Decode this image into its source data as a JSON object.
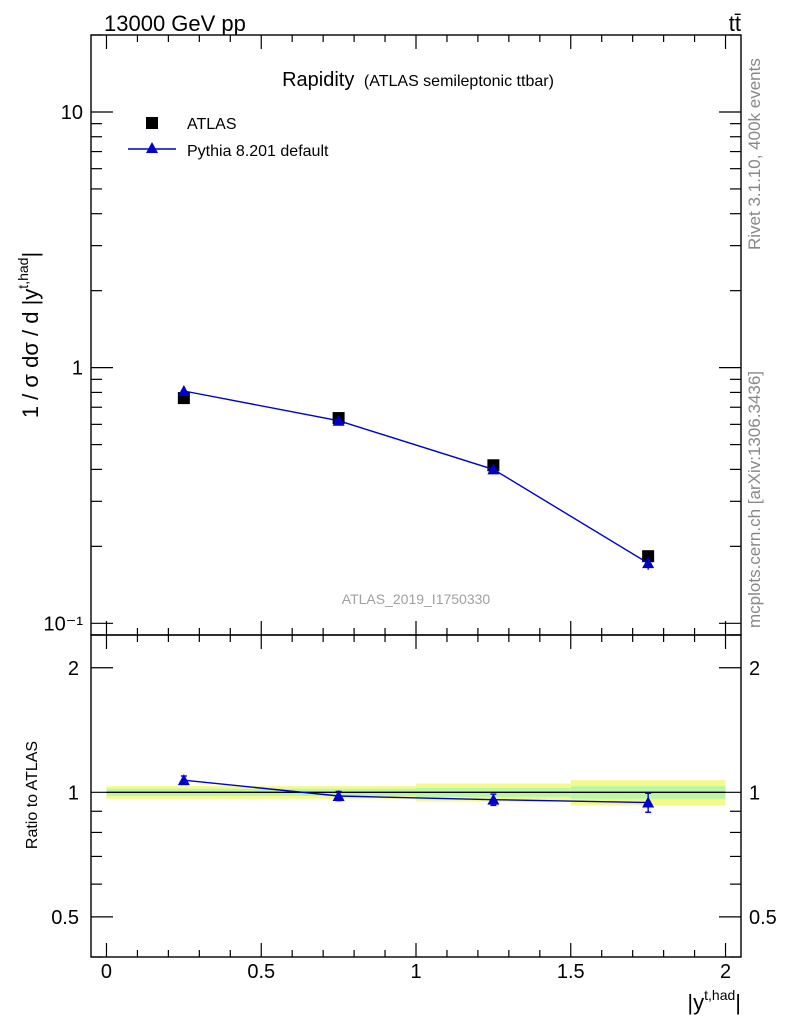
{
  "header": {
    "left": "13000 GeV pp",
    "right": "tt̄"
  },
  "side_text": {
    "rivet": "Rivet 3.1.10,  400k events",
    "source": "mcplots.cern.ch [arXiv:1306.3436]"
  },
  "chart_data": [
    {
      "type": "scatter",
      "title": "Rapidity",
      "subtitle": "(ATLAS semileptonic ttbar)",
      "watermark": "ATLAS_2019_I1750330",
      "ylabel": "1 / σ dσ / d |y^{t,had}|",
      "yscale": "log",
      "ylim": [
        0.09,
        20
      ],
      "xlim": [
        -0.05,
        2.05
      ],
      "y_ticks": [
        {
          "v": 0.1,
          "label": "10⁻¹"
        },
        {
          "v": 1,
          "label": "1"
        },
        {
          "v": 10,
          "label": "10"
        }
      ],
      "legend": {
        "position": "top-left"
      },
      "series": [
        {
          "name": "ATLAS",
          "marker": "square",
          "color": "#000000",
          "x": [
            0.25,
            0.75,
            1.25,
            1.75
          ],
          "y": [
            0.76,
            0.635,
            0.415,
            0.183
          ]
        },
        {
          "name": "Pythia 8.201 default",
          "marker": "triangle",
          "color": "#0000cc",
          "x": [
            0.25,
            0.75,
            1.25,
            1.75
          ],
          "y": [
            0.81,
            0.62,
            0.4,
            0.172
          ],
          "yerr": [
            0.012,
            0.01,
            0.008,
            0.01
          ]
        }
      ]
    },
    {
      "type": "line",
      "ylabel": "Ratio to ATLAS",
      "xlabel": "|y^{t,had}|",
      "ylim": [
        0.4,
        2.4
      ],
      "yscale": "log",
      "xlim": [
        -0.05,
        2.05
      ],
      "y_ticks": [
        {
          "v": 0.5,
          "label": "0.5"
        },
        {
          "v": 1,
          "label": "1"
        },
        {
          "v": 2,
          "label": "2"
        }
      ],
      "x_ticks": [
        {
          "v": 0,
          "label": "0"
        },
        {
          "v": 0.5,
          "label": "0.5"
        },
        {
          "v": 1,
          "label": "1"
        },
        {
          "v": 1.5,
          "label": "1.5"
        },
        {
          "v": 2,
          "label": "2"
        }
      ],
      "bands": [
        {
          "x0": 0.0,
          "x1": 0.5,
          "stat": 0.02,
          "total": 0.035
        },
        {
          "x0": 0.5,
          "x1": 1.0,
          "stat": 0.02,
          "total": 0.035
        },
        {
          "x0": 1.0,
          "x1": 1.5,
          "stat": 0.025,
          "total": 0.05
        },
        {
          "x0": 1.5,
          "x1": 2.0,
          "stat": 0.035,
          "total": 0.07
        }
      ],
      "series": [
        {
          "name": "Pythia 8.201 default",
          "color": "#0000cc",
          "x": [
            0.25,
            0.75,
            1.25,
            1.75
          ],
          "y": [
            1.07,
            0.98,
            0.96,
            0.945
          ],
          "yerr": [
            0.025,
            0.025,
            0.03,
            0.05
          ]
        }
      ]
    }
  ]
}
